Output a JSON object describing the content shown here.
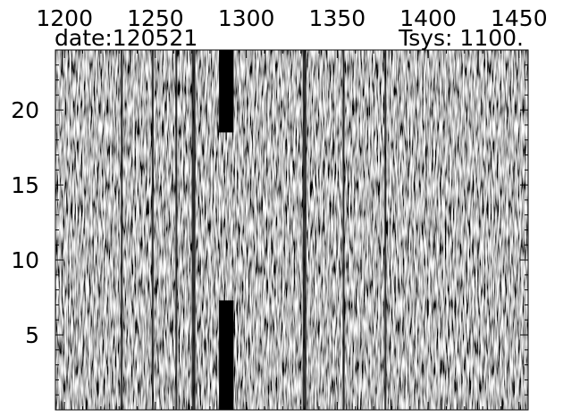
{
  "header": {
    "date_label": "date:120521",
    "tsys_label": "Tsys: 1100."
  },
  "chart_data": {
    "type": "heatmap",
    "title": "",
    "xlabel": "",
    "ylabel": "",
    "xlim": [
      1195,
      1455
    ],
    "ylim": [
      0,
      24
    ],
    "x_ticks": [
      1200,
      1250,
      1300,
      1350,
      1400,
      1450
    ],
    "x_tick_labels": [
      "1200",
      "1250",
      "1300",
      "1350",
      "1400",
      "1450"
    ],
    "y_ticks": [
      5,
      10,
      15,
      20
    ],
    "y_tick_labels": [
      "5",
      "10",
      "15",
      "20"
    ],
    "colormap": "grayscale",
    "colors": {
      "low": "#000000",
      "high": "#ffffff",
      "axes": "#000000"
    },
    "grid": false,
    "dark_channels": [
      {
        "x_from": 1231,
        "x_to": 1232,
        "y_from": 0,
        "y_to": 24
      },
      {
        "x_from": 1248,
        "x_to": 1249,
        "y_from": 0,
        "y_to": 24
      },
      {
        "x_from": 1261,
        "x_to": 1262,
        "y_from": 0,
        "y_to": 24
      },
      {
        "x_from": 1270,
        "x_to": 1272,
        "y_from": 0,
        "y_to": 24
      },
      {
        "x_from": 1285,
        "x_to": 1293,
        "y_from": 0,
        "y_to": 7.3
      },
      {
        "x_from": 1285,
        "x_to": 1293,
        "y_from": 18.5,
        "y_to": 24
      },
      {
        "x_from": 1331,
        "x_to": 1333,
        "y_from": 0,
        "y_to": 24
      },
      {
        "x_from": 1353,
        "x_to": 1354,
        "y_from": 0,
        "y_to": 24
      },
      {
        "x_from": 1376,
        "x_to": 1377,
        "y_from": 0,
        "y_to": 24
      }
    ]
  }
}
